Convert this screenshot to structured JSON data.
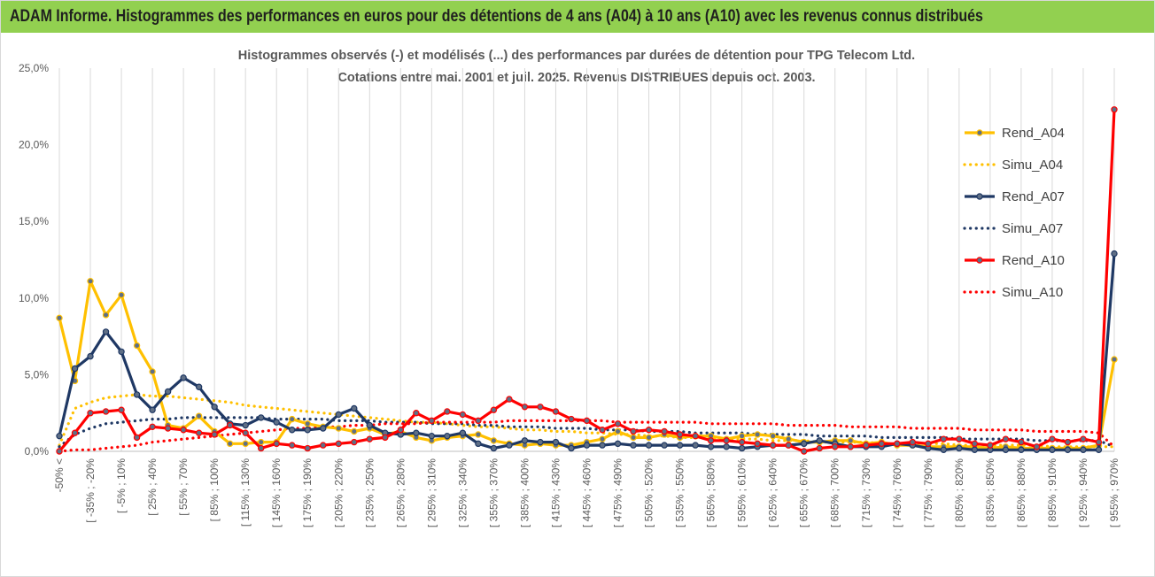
{
  "header": {
    "banner": "ADAM Informe. Histogrammes des performances en euros pour des détentions de 4 ans (A04) à 10 ans (A10) avec les revenus connus distribués"
  },
  "chart_data": {
    "type": "line",
    "title_line1": "Histogrammes observés (-) et modélisés (...) des performances par durées de détention pour TPG Telecom Ltd.",
    "title_line2": "Cotations entre mai. 2001 et juil. 2025. Revenus DISTRIBUES depuis oct. 2003.",
    "ylim": [
      0,
      25
    ],
    "y_ticks": [
      "0,0%",
      "5,0%",
      "10,0%",
      "15,0%",
      "20,0%",
      "25,0%"
    ],
    "x_ticks": [
      "-50% <",
      "[ -35% ; -20%",
      "[ -5% ; 10%",
      "[ 25% ; 40%",
      "[ 55% ; 70%",
      "[ 85% ; 100%",
      "[ 115% ; 130%",
      "[ 145% ; 160%",
      "[ 175% ; 190%",
      "[ 205% ; 220%",
      "[ 235% ; 250%",
      "[ 265% ; 280%",
      "[ 295% ; 310%",
      "[ 325% ; 340%",
      "[ 355% ; 370%",
      "[ 385% ; 400%",
      "[ 415% ; 430%",
      "[ 445% ; 460%",
      "[ 475% ; 490%",
      "[ 505% ; 520%",
      "[ 535% ; 550%",
      "[ 565% ; 580%",
      "[ 595% ; 610%",
      "[ 625% ; 640%",
      "[ 655% ; 670%",
      "[ 685% ; 700%",
      "[ 715% ; 730%",
      "[ 745% ; 760%",
      "[ 775% ; 790%",
      "[ 805% ; 820%",
      "[ 835% ; 850%",
      "[ 865% ; 880%",
      "[ 895% ; 910%",
      "[ 925% ; 940%",
      "[ 955% ; 970%"
    ],
    "n_points": 69,
    "legend_position": "right",
    "grid": "vertical",
    "series": [
      {
        "name": "Rend_A04",
        "style": "solid",
        "color": "#ffc000",
        "values": [
          8.7,
          4.6,
          11.1,
          8.9,
          10.2,
          6.9,
          5.2,
          1.7,
          1.5,
          2.3,
          1.3,
          0.5,
          0.5,
          0.6,
          0.6,
          2.1,
          1.8,
          1.6,
          1.5,
          1.3,
          1.5,
          1.1,
          1.3,
          0.9,
          0.7,
          0.9,
          1.0,
          1.1,
          0.7,
          0.5,
          0.4,
          0.5,
          0.4,
          0.4,
          0.6,
          0.8,
          1.3,
          0.9,
          0.9,
          1.1,
          0.9,
          1.0,
          1.0,
          0.8,
          1.0,
          1.1,
          1.0,
          0.8,
          0.6,
          0.6,
          0.7,
          0.7,
          0.5,
          0.6,
          0.4,
          0.4,
          0.3,
          0.3,
          0.3,
          0.3,
          0.2,
          0.3,
          0.2,
          0.2,
          0.2,
          0.2,
          0.2,
          0.4,
          6.0
        ]
      },
      {
        "name": "Simu_A04",
        "style": "dotted",
        "color": "#ffc000",
        "values": [
          0.4,
          2.8,
          3.2,
          3.5,
          3.6,
          3.7,
          3.6,
          3.6,
          3.5,
          3.4,
          3.3,
          3.2,
          3.0,
          2.9,
          2.8,
          2.7,
          2.6,
          2.5,
          2.4,
          2.3,
          2.2,
          2.1,
          2.0,
          1.9,
          1.9,
          1.8,
          1.7,
          1.6,
          1.6,
          1.5,
          1.4,
          1.4,
          1.3,
          1.3,
          1.2,
          1.2,
          1.1,
          1.1,
          1.0,
          1.0,
          0.9,
          0.9,
          0.9,
          0.8,
          0.8,
          0.8,
          0.7,
          0.7,
          0.7,
          0.6,
          0.6,
          0.6,
          0.6,
          0.5,
          0.5,
          0.5,
          0.5,
          0.5,
          0.4,
          0.4,
          0.4,
          0.4,
          0.4,
          0.4,
          0.3,
          0.3,
          0.3,
          0.3,
          0.3
        ]
      },
      {
        "name": "Rend_A07",
        "style": "solid",
        "color": "#1f3864",
        "values": [
          1.0,
          5.4,
          6.2,
          7.8,
          6.5,
          3.7,
          2.7,
          3.9,
          4.8,
          4.2,
          2.9,
          1.8,
          1.7,
          2.2,
          1.9,
          1.4,
          1.4,
          1.5,
          2.4,
          2.8,
          1.7,
          1.2,
          1.1,
          1.2,
          1.0,
          1.0,
          1.2,
          0.5,
          0.2,
          0.4,
          0.7,
          0.6,
          0.6,
          0.2,
          0.4,
          0.4,
          0.5,
          0.4,
          0.4,
          0.4,
          0.4,
          0.4,
          0.3,
          0.3,
          0.2,
          0.3,
          0.4,
          0.4,
          0.5,
          0.7,
          0.5,
          0.3,
          0.3,
          0.3,
          0.5,
          0.4,
          0.2,
          0.1,
          0.2,
          0.1,
          0.1,
          0.1,
          0.1,
          0.1,
          0.1,
          0.1,
          0.1,
          0.1,
          12.9
        ]
      },
      {
        "name": "Simu_A07",
        "style": "dotted",
        "color": "#1f3864",
        "values": [
          0.3,
          1.1,
          1.5,
          1.8,
          1.9,
          2.0,
          2.1,
          2.1,
          2.2,
          2.2,
          2.2,
          2.2,
          2.2,
          2.2,
          2.1,
          2.1,
          2.1,
          2.1,
          2.0,
          2.0,
          2.0,
          1.9,
          1.9,
          1.9,
          1.8,
          1.8,
          1.8,
          1.7,
          1.7,
          1.6,
          1.6,
          1.6,
          1.5,
          1.5,
          1.5,
          1.4,
          1.4,
          1.4,
          1.3,
          1.3,
          1.3,
          1.2,
          1.2,
          1.2,
          1.2,
          1.1,
          1.1,
          1.1,
          1.1,
          1.0,
          1.0,
          1.0,
          1.0,
          0.9,
          0.9,
          0.9,
          0.9,
          0.9,
          0.8,
          0.8,
          0.8,
          0.8,
          0.8,
          0.7,
          0.7,
          0.7,
          0.7,
          0.7,
          0.3
        ]
      },
      {
        "name": "Rend_A10",
        "style": "solid",
        "color": "#ff0000",
        "values": [
          0.0,
          1.2,
          2.5,
          2.6,
          2.7,
          0.9,
          1.6,
          1.5,
          1.4,
          1.2,
          1.1,
          1.7,
          1.2,
          0.2,
          0.5,
          0.4,
          0.2,
          0.4,
          0.5,
          0.6,
          0.8,
          0.9,
          1.4,
          2.5,
          2.0,
          2.6,
          2.4,
          2.0,
          2.7,
          3.4,
          2.9,
          2.9,
          2.6,
          2.1,
          2.0,
          1.4,
          1.8,
          1.3,
          1.4,
          1.3,
          1.1,
          1.0,
          0.7,
          0.7,
          0.6,
          0.5,
          0.4,
          0.4,
          0.0,
          0.2,
          0.3,
          0.3,
          0.4,
          0.5,
          0.5,
          0.6,
          0.5,
          0.8,
          0.8,
          0.5,
          0.4,
          0.8,
          0.6,
          0.3,
          0.8,
          0.6,
          0.8,
          0.6,
          22.3
        ]
      },
      {
        "name": "Simu_A10",
        "style": "dotted",
        "color": "#ff0000",
        "values": [
          0.0,
          0.1,
          0.1,
          0.2,
          0.3,
          0.4,
          0.6,
          0.7,
          0.8,
          0.9,
          1.0,
          1.1,
          1.2,
          1.3,
          1.4,
          1.5,
          1.5,
          1.6,
          1.6,
          1.7,
          1.7,
          1.8,
          1.8,
          1.8,
          1.9,
          1.9,
          1.9,
          1.9,
          1.9,
          2.0,
          2.0,
          2.0,
          2.0,
          2.0,
          2.0,
          2.0,
          1.9,
          1.9,
          1.9,
          1.9,
          1.9,
          1.9,
          1.8,
          1.8,
          1.8,
          1.8,
          1.8,
          1.7,
          1.7,
          1.7,
          1.7,
          1.6,
          1.6,
          1.6,
          1.6,
          1.5,
          1.5,
          1.5,
          1.5,
          1.4,
          1.4,
          1.4,
          1.4,
          1.3,
          1.3,
          1.3,
          1.3,
          1.2,
          0.3
        ]
      }
    ]
  }
}
